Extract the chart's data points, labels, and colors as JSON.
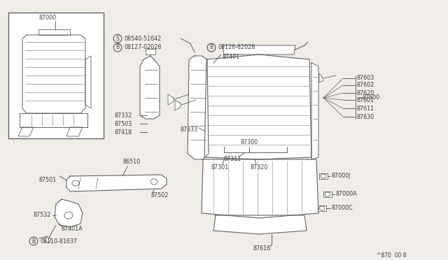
{
  "bg_color": "#f0ede8",
  "line_color": "#606060",
  "text_color": "#404040",
  "footer": "^870  00 8",
  "figsize": [
    6.4,
    3.72
  ],
  "dpi": 100,
  "xlim": [
    0,
    640
  ],
  "ylim": [
    0,
    372
  ]
}
